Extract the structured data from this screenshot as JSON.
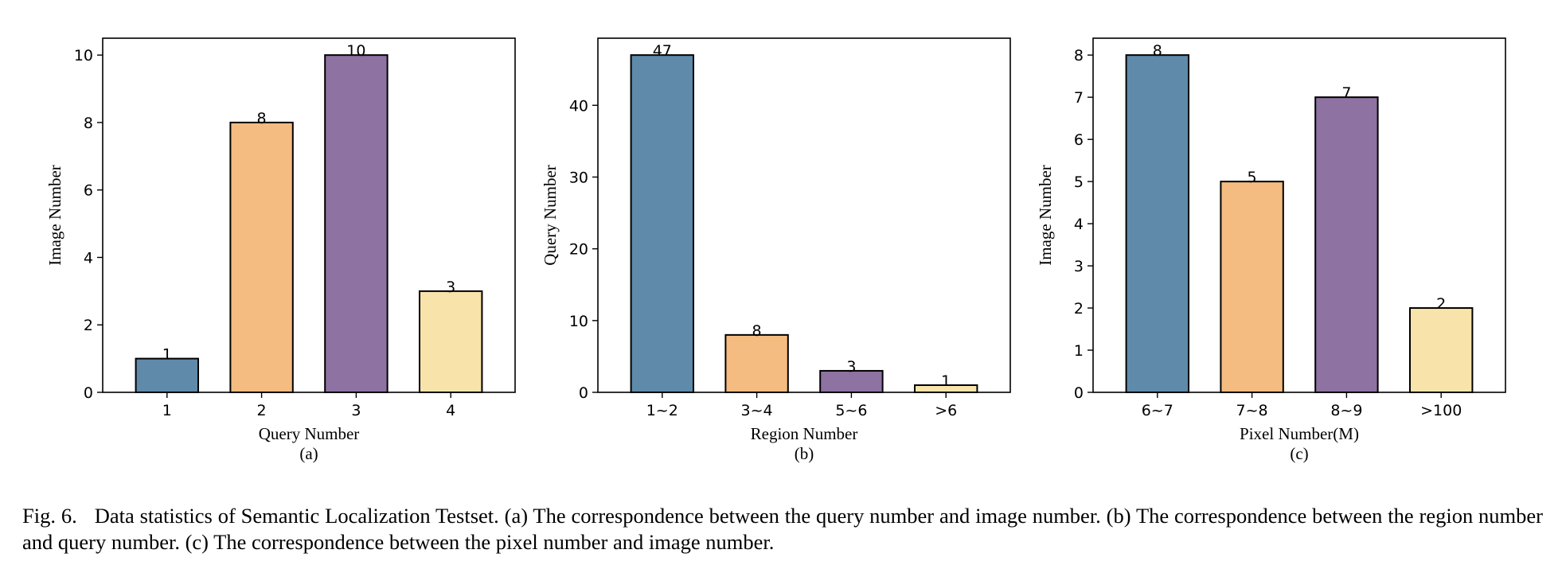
{
  "chart_data": [
    {
      "type": "bar",
      "categories": [
        "1",
        "2",
        "3",
        "4"
      ],
      "values": [
        1,
        8,
        10,
        3
      ],
      "xlabel": "Query Number",
      "ylabel": "Image Number",
      "ylim": [
        0,
        10.5
      ],
      "yticks": [
        0,
        2,
        4,
        6,
        8,
        10
      ],
      "sublabel": "(a)",
      "grid": false
    },
    {
      "type": "bar",
      "categories": [
        "1~2",
        "3~4",
        "5~6",
        ">6"
      ],
      "values": [
        47,
        8,
        3,
        1
      ],
      "xlabel": "Region Number",
      "ylabel": "Query Number",
      "ylim": [
        0,
        49.35
      ],
      "yticks": [
        0,
        10,
        20,
        30,
        40
      ],
      "sublabel": "(b)",
      "grid": false
    },
    {
      "type": "bar",
      "categories": [
        "6~7",
        "7~8",
        "8~9",
        ">100"
      ],
      "values": [
        8,
        5,
        7,
        2
      ],
      "xlabel": "Pixel Number(M)",
      "ylabel": "Image Number",
      "ylim": [
        0,
        8.4
      ],
      "yticks": [
        0,
        1,
        2,
        3,
        4,
        5,
        6,
        7,
        8
      ],
      "sublabel": "(c)",
      "grid": false
    }
  ],
  "colors": [
    "#5f8aaa",
    "#f4bc80",
    "#8d72a2",
    "#f8e3aa"
  ],
  "caption": {
    "label": "Fig. 6.",
    "text": "Data statistics of Semantic Localization Testset. (a) The correspondence between the query number and image number. (b) The correspondence between the region number and query number. (c) The correspondence between the pixel number and image number."
  }
}
